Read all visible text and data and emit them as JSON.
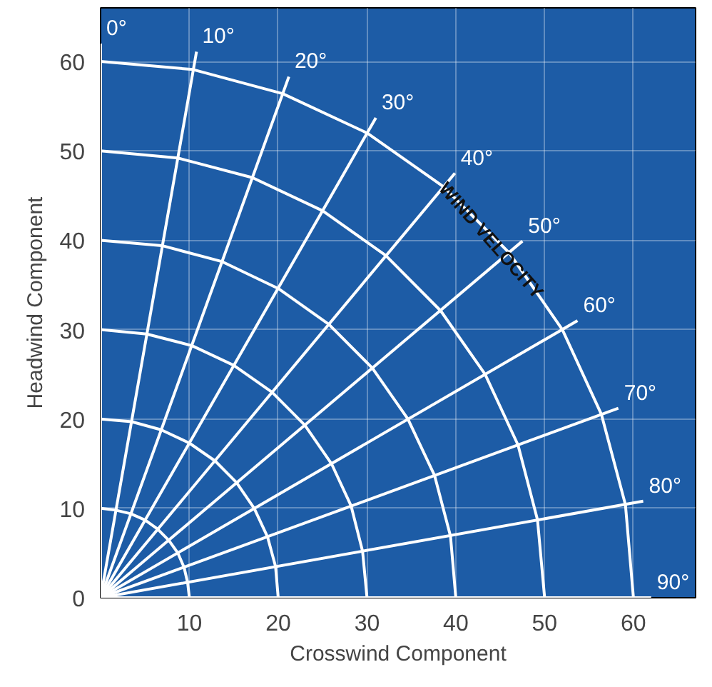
{
  "chart_data": {
    "type": "line",
    "xlabel": "Crosswind Component",
    "ylabel": "Headwind Component",
    "xlim": [
      0,
      67
    ],
    "ylim": [
      0,
      66
    ],
    "xticks": [
      {
        "value": 0,
        "label": null
      },
      10,
      20,
      30,
      40,
      50,
      60
    ],
    "yticks": [
      0,
      10,
      20,
      30,
      40,
      50,
      60
    ],
    "grid": true,
    "series": [
      {
        "color": "#ffffff",
        "x": [
          0,
          1.7,
          3.4,
          5,
          6.4,
          7.7,
          8.7,
          9.4,
          9.8,
          10
        ],
        "values": [
          10,
          9.8,
          9.4,
          8.7,
          7.7,
          6.4,
          5,
          3.4,
          1.7,
          0
        ]
      },
      {
        "color": "#ffffff",
        "x": [
          0,
          3.5,
          6.8,
          10,
          12.9,
          15.3,
          17.3,
          18.8,
          19.7,
          20
        ],
        "values": [
          20,
          19.7,
          18.8,
          17.3,
          15.3,
          12.9,
          10,
          6.8,
          3.5,
          0
        ]
      },
      {
        "color": "#ffffff",
        "x": [
          0,
          5.2,
          10.3,
          15,
          19.3,
          23,
          26,
          28.2,
          29.5,
          30
        ],
        "values": [
          30,
          29.5,
          28.2,
          26,
          23,
          19.3,
          15,
          10.3,
          5.2,
          0
        ]
      },
      {
        "color": "#ffffff",
        "x": [
          0,
          6.9,
          13.7,
          20,
          25.7,
          30.6,
          34.6,
          37.6,
          39.4,
          40
        ],
        "values": [
          40,
          39.4,
          37.6,
          34.6,
          30.6,
          25.7,
          20,
          13.7,
          6.9,
          0
        ]
      },
      {
        "color": "#ffffff",
        "x": [
          0,
          8.7,
          17.1,
          25,
          32.1,
          38.3,
          43.3,
          47,
          49.2,
          50
        ],
        "values": [
          50,
          49.2,
          47,
          43.3,
          38.3,
          32.1,
          25,
          17.1,
          8.7,
          0
        ]
      },
      {
        "color": "#ffffff",
        "x": [
          0,
          10.4,
          20.5,
          30,
          38.6,
          46,
          52,
          56.4,
          59.1,
          60
        ],
        "values": [
          60,
          59.1,
          56.4,
          52,
          46,
          38.6,
          30,
          20.5,
          10.4,
          0
        ]
      },
      {
        "name": "0°",
        "color": "#ffffff",
        "x": [
          0,
          0
        ],
        "values": [
          0,
          62
        ]
      },
      {
        "name": "10°",
        "color": "#ffffff",
        "x": [
          0,
          10.8
        ],
        "values": [
          0,
          61.1
        ]
      },
      {
        "name": "20°",
        "color": "#ffffff",
        "x": [
          0,
          21.2
        ],
        "values": [
          0,
          58.3
        ]
      },
      {
        "name": "30°",
        "color": "#ffffff",
        "x": [
          0,
          31
        ],
        "values": [
          0,
          53.7
        ]
      },
      {
        "name": "40°",
        "color": "#ffffff",
        "x": [
          0,
          39.9
        ],
        "values": [
          0,
          47.5
        ]
      },
      {
        "name": "50°",
        "color": "#ffffff",
        "x": [
          0,
          47.5
        ],
        "values": [
          0,
          39.9
        ]
      },
      {
        "name": "60°",
        "color": "#ffffff",
        "x": [
          0,
          53.7
        ],
        "values": [
          0,
          31
        ]
      },
      {
        "name": "70°",
        "color": "#ffffff",
        "x": [
          0,
          58.3
        ],
        "values": [
          0,
          21.2
        ]
      },
      {
        "name": "80°",
        "color": "#ffffff",
        "x": [
          0,
          61.1
        ],
        "values": [
          0,
          10.8
        ]
      },
      {
        "name": "90°",
        "color": "#ffffff",
        "x": [
          0,
          62
        ],
        "values": [
          0,
          0
        ]
      }
    ],
    "annotations": [
      {
        "text": "WIND VELOCITY",
        "x": 44,
        "y": 40
      }
    ]
  }
}
